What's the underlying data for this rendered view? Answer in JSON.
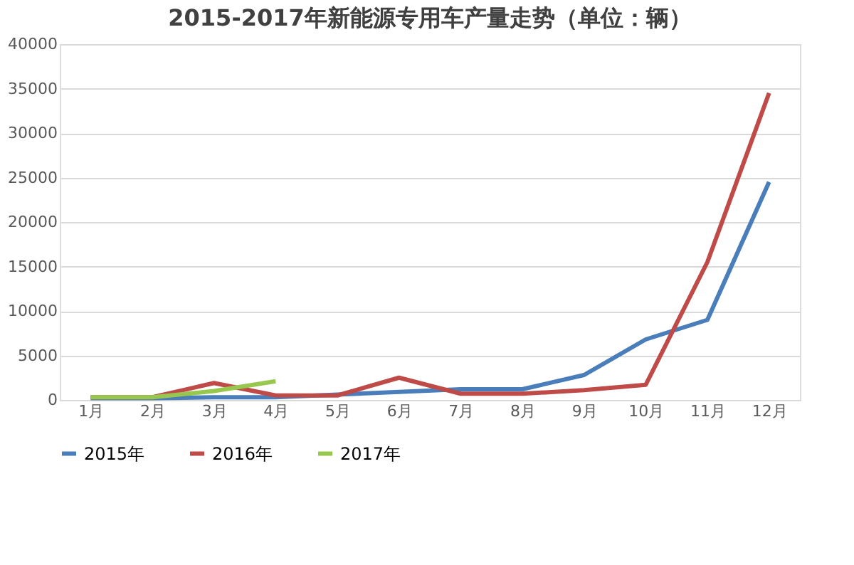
{
  "chart_data": {
    "type": "line",
    "title": "2015-2017年新能源专用车产量走势（单位：辆）",
    "categories": [
      "1月",
      "2月",
      "3月",
      "4月",
      "5月",
      "6月",
      "7月",
      "8月",
      "9月",
      "10月",
      "11月",
      "12月"
    ],
    "series": [
      {
        "name": "2015年",
        "color": "#4a7ebb",
        "values": [
          200,
          200,
          300,
          300,
          600,
          900,
          1200,
          1200,
          2800,
          6800,
          9000,
          24500
        ]
      },
      {
        "name": "2016年",
        "color": "#be4b48",
        "values": [
          300,
          300,
          1900,
          500,
          500,
          2500,
          700,
          700,
          1100,
          1700,
          15500,
          34500
        ]
      },
      {
        "name": "2017年",
        "color": "#98c74f",
        "values": [
          300,
          300,
          1000,
          2100,
          null,
          null,
          null,
          null,
          null,
          null,
          null,
          null
        ]
      }
    ],
    "ylim": [
      0,
      40000
    ],
    "yticks": [
      0,
      5000,
      10000,
      15000,
      20000,
      25000,
      30000,
      35000,
      40000
    ],
    "grid": "y",
    "legend": "bottom",
    "marker": "none",
    "line_style": "solid"
  }
}
